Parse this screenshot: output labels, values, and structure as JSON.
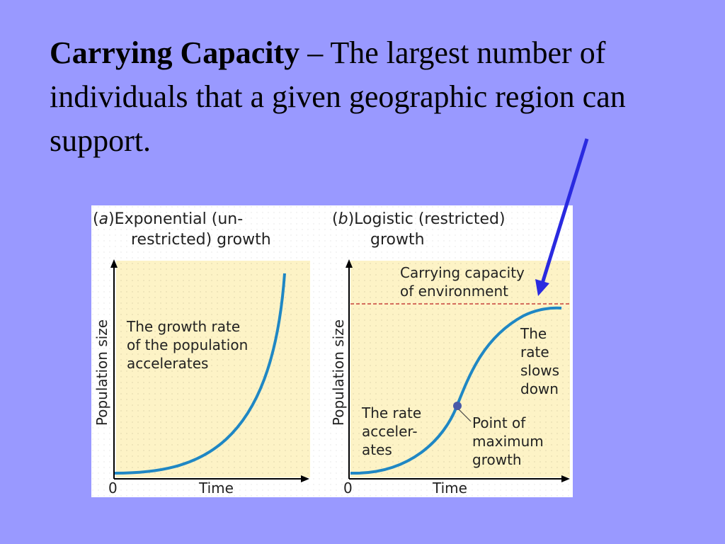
{
  "definition": {
    "term": "Carrying Capacity",
    "text": " – The largest number of individuals that a given geographic region can support."
  },
  "figure": {
    "colors": {
      "panel_bg": "#fdf3c6",
      "curve": "#1f87c4",
      "carrying_line": "#c02020",
      "axis": "#000000",
      "point": "#4a5aa8",
      "callout_arrow": "#2a2ae0"
    },
    "panel_a": {
      "letter": "a",
      "title_line1": "Exponential (un-",
      "title_line2": "restricted) growth",
      "annotation": [
        "The growth rate",
        "of the population",
        "accelerates"
      ],
      "xlabel": "Time",
      "ylabel": "Population size",
      "origin": "0"
    },
    "panel_b": {
      "letter": "b",
      "title_line1": "Logistic (restricted)",
      "title_line2": "growth",
      "capacity_label": [
        "Carrying capacity",
        "of environment"
      ],
      "upper_annotation": [
        "The",
        "rate",
        "slows",
        "down"
      ],
      "lower_annotation": [
        "The rate",
        "acceler-",
        "ates"
      ],
      "point_label": [
        "Point of",
        "maximum",
        "growth"
      ],
      "xlabel": "Time",
      "ylabel": "Population size",
      "origin": "0"
    }
  }
}
